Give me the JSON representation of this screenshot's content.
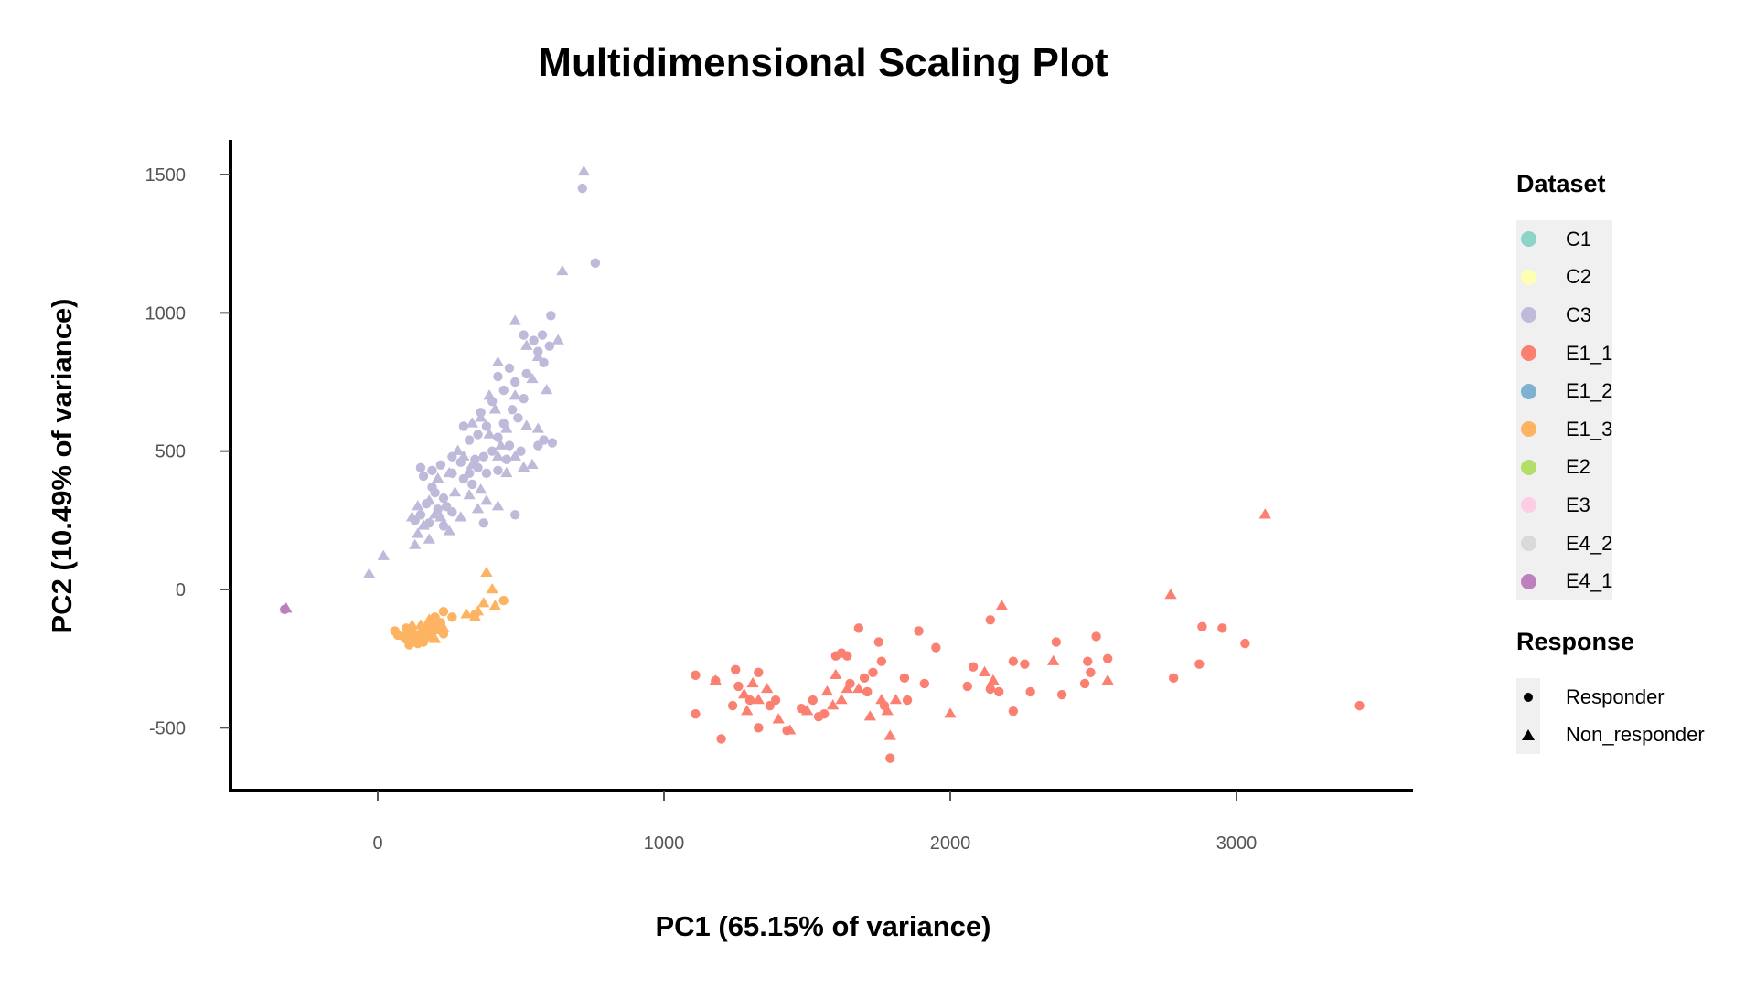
{
  "chart_data": {
    "type": "scatter",
    "title": "Multidimensional Scaling Plot",
    "xlabel": "PC1 (65.15% of variance)",
    "ylabel": "PC2 (10.49% of variance)",
    "xlim": [
      -500,
      3600
    ],
    "ylim": [
      -720,
      1620
    ],
    "xticks": [
      0,
      1000,
      2000,
      3000
    ],
    "yticks": [
      -500,
      0,
      500,
      1000,
      1500
    ],
    "grid": false,
    "legend_position": "right",
    "legends": [
      {
        "title": "Dataset",
        "items": [
          {
            "label": "C1",
            "color": "#8DD3C7"
          },
          {
            "label": "C2",
            "color": "#FFFFB3"
          },
          {
            "label": "C3",
            "color": "#BEBADA"
          },
          {
            "label": "E1_1",
            "color": "#FB8072"
          },
          {
            "label": "E1_2",
            "color": "#80B1D3"
          },
          {
            "label": "E1_3",
            "color": "#FDB462"
          },
          {
            "label": "E2",
            "color": "#B3DE69"
          },
          {
            "label": "E3",
            "color": "#FCCDE5"
          },
          {
            "label": "E4_2",
            "color": "#D9D9D9"
          },
          {
            "label": "E4_1",
            "color": "#BC80BD"
          }
        ]
      },
      {
        "title": "Response",
        "items": [
          {
            "label": "Responder",
            "shape": "circle"
          },
          {
            "label": "Non_responder",
            "shape": "triangle"
          }
        ]
      }
    ],
    "series": [
      {
        "dataset": "C3",
        "response": "Responder",
        "color": "#BEBADA",
        "points": [
          [
            715,
            1450
          ],
          [
            760,
            1180
          ],
          [
            605,
            990
          ],
          [
            575,
            920
          ],
          [
            545,
            900
          ],
          [
            510,
            920
          ],
          [
            560,
            860
          ],
          [
            600,
            880
          ],
          [
            460,
            800
          ],
          [
            420,
            770
          ],
          [
            480,
            750
          ],
          [
            520,
            780
          ],
          [
            580,
            820
          ],
          [
            440,
            720
          ],
          [
            400,
            680
          ],
          [
            360,
            640
          ],
          [
            470,
            650
          ],
          [
            510,
            690
          ],
          [
            490,
            620
          ],
          [
            440,
            600
          ],
          [
            380,
            590
          ],
          [
            300,
            590
          ],
          [
            320,
            540
          ],
          [
            350,
            560
          ],
          [
            420,
            550
          ],
          [
            460,
            520
          ],
          [
            500,
            500
          ],
          [
            560,
            520
          ],
          [
            580,
            540
          ],
          [
            610,
            530
          ],
          [
            400,
            500
          ],
          [
            370,
            480
          ],
          [
            340,
            470
          ],
          [
            290,
            460
          ],
          [
            260,
            480
          ],
          [
            220,
            450
          ],
          [
            190,
            430
          ],
          [
            150,
            440
          ],
          [
            160,
            410
          ],
          [
            260,
            420
          ],
          [
            300,
            400
          ],
          [
            330,
            380
          ],
          [
            380,
            420
          ],
          [
            420,
            430
          ],
          [
            450,
            470
          ],
          [
            200,
            350
          ],
          [
            230,
            330
          ],
          [
            170,
            310
          ],
          [
            210,
            290
          ],
          [
            260,
            280
          ],
          [
            150,
            270
          ],
          [
            130,
            250
          ],
          [
            180,
            240
          ],
          [
            230,
            230
          ],
          [
            370,
            240
          ],
          [
            480,
            270
          ],
          [
            240,
            300
          ],
          [
            190,
            370
          ],
          [
            320,
            420
          ],
          [
            350,
            440
          ]
        ]
      },
      {
        "dataset": "C3",
        "response": "Non_responder",
        "color": "#BEBADA",
        "points": [
          [
            720,
            1510
          ],
          [
            645,
            1150
          ],
          [
            480,
            970
          ],
          [
            630,
            900
          ],
          [
            520,
            880
          ],
          [
            560,
            840
          ],
          [
            420,
            820
          ],
          [
            540,
            760
          ],
          [
            480,
            700
          ],
          [
            390,
            700
          ],
          [
            590,
            720
          ],
          [
            410,
            650
          ],
          [
            360,
            620
          ],
          [
            450,
            580
          ],
          [
            390,
            560
          ],
          [
            330,
            600
          ],
          [
            520,
            590
          ],
          [
            430,
            520
          ],
          [
            480,
            480
          ],
          [
            540,
            450
          ],
          [
            330,
            450
          ],
          [
            280,
            500
          ],
          [
            420,
            480
          ],
          [
            250,
            420
          ],
          [
            210,
            400
          ],
          [
            320,
            340
          ],
          [
            360,
            360
          ],
          [
            380,
            320
          ],
          [
            270,
            350
          ],
          [
            180,
            320
          ],
          [
            140,
            300
          ],
          [
            200,
            270
          ],
          [
            120,
            260
          ],
          [
            160,
            230
          ],
          [
            140,
            200
          ],
          [
            130,
            160
          ],
          [
            180,
            180
          ],
          [
            250,
            210
          ],
          [
            220,
            260
          ],
          [
            290,
            260
          ],
          [
            350,
            290
          ],
          [
            420,
            300
          ],
          [
            20,
            120
          ],
          [
            -30,
            55
          ],
          [
            300,
            480
          ],
          [
            450,
            420
          ],
          [
            510,
            440
          ],
          [
            560,
            580
          ]
        ]
      },
      {
        "dataset": "E1_3",
        "response": "Responder",
        "color": "#FDB462",
        "points": [
          [
            60,
            -150
          ],
          [
            70,
            -165
          ],
          [
            90,
            -170
          ],
          [
            100,
            -180
          ],
          [
            110,
            -160
          ],
          [
            120,
            -150
          ],
          [
            130,
            -175
          ],
          [
            140,
            -185
          ],
          [
            150,
            -160
          ],
          [
            160,
            -150
          ],
          [
            170,
            -140
          ],
          [
            180,
            -170
          ],
          [
            190,
            -155
          ],
          [
            200,
            -130
          ],
          [
            210,
            -145
          ],
          [
            220,
            -120
          ],
          [
            230,
            -160
          ],
          [
            120,
            -190
          ],
          [
            140,
            -195
          ],
          [
            110,
            -200
          ],
          [
            160,
            -190
          ],
          [
            180,
            -125
          ],
          [
            200,
            -100
          ],
          [
            230,
            -80
          ],
          [
            260,
            -100
          ],
          [
            340,
            -90
          ],
          [
            440,
            -40
          ],
          [
            100,
            -140
          ]
        ]
      },
      {
        "dataset": "E1_3",
        "response": "Non_responder",
        "color": "#FDB462",
        "points": [
          [
            380,
            60
          ],
          [
            400,
            0
          ],
          [
            370,
            -50
          ],
          [
            340,
            -100
          ],
          [
            350,
            -80
          ],
          [
            410,
            -60
          ],
          [
            310,
            -90
          ],
          [
            180,
            -110
          ],
          [
            150,
            -130
          ],
          [
            230,
            -140
          ],
          [
            120,
            -130
          ],
          [
            200,
            -180
          ]
        ]
      },
      {
        "dataset": "E4_1",
        "response": "Non_responder",
        "color": "#BC80BD",
        "points": [
          [
            -320,
            -70
          ]
        ]
      },
      {
        "dataset": "E4_1",
        "response": "Responder",
        "color": "#BC80BD",
        "points": [
          [
            -325,
            -72
          ]
        ]
      },
      {
        "dataset": "E1_1",
        "response": "Responder",
        "color": "#FB8072",
        "points": [
          [
            3430,
            -420
          ],
          [
            3030,
            -195
          ],
          [
            2950,
            -140
          ],
          [
            2880,
            -135
          ],
          [
            2870,
            -270
          ],
          [
            2780,
            -320
          ],
          [
            2550,
            -250
          ],
          [
            2510,
            -170
          ],
          [
            2490,
            -300
          ],
          [
            2480,
            -260
          ],
          [
            2470,
            -340
          ],
          [
            2370,
            -190
          ],
          [
            2390,
            -380
          ],
          [
            2280,
            -370
          ],
          [
            2260,
            -270
          ],
          [
            2220,
            -260
          ],
          [
            2220,
            -440
          ],
          [
            2140,
            -110
          ],
          [
            2140,
            -360
          ],
          [
            2170,
            -370
          ],
          [
            2080,
            -280
          ],
          [
            2060,
            -350
          ],
          [
            1950,
            -210
          ],
          [
            1910,
            -340
          ],
          [
            1890,
            -150
          ],
          [
            1840,
            -320
          ],
          [
            1850,
            -400
          ],
          [
            1790,
            -610
          ],
          [
            1750,
            -190
          ],
          [
            1760,
            -260
          ],
          [
            1770,
            -420
          ],
          [
            1730,
            -300
          ],
          [
            1700,
            -320
          ],
          [
            1680,
            -140
          ],
          [
            1650,
            -340
          ],
          [
            1620,
            -230
          ],
          [
            1640,
            -240
          ],
          [
            1600,
            -240
          ],
          [
            1560,
            -450
          ],
          [
            1540,
            -460
          ],
          [
            1520,
            -400
          ],
          [
            1480,
            -430
          ],
          [
            1430,
            -510
          ],
          [
            1390,
            -400
          ],
          [
            1370,
            -420
          ],
          [
            1330,
            -500
          ],
          [
            1330,
            -300
          ],
          [
            1300,
            -400
          ],
          [
            1260,
            -350
          ],
          [
            1250,
            -290
          ],
          [
            1240,
            -420
          ],
          [
            1200,
            -540
          ],
          [
            1180,
            -330
          ],
          [
            1110,
            -310
          ],
          [
            1110,
            -450
          ],
          [
            1710,
            -370
          ]
        ]
      },
      {
        "dataset": "E1_1",
        "response": "Non_responder",
        "color": "#FB8072",
        "points": [
          [
            3100,
            270
          ],
          [
            2770,
            -20
          ],
          [
            2180,
            -60
          ],
          [
            2550,
            -330
          ],
          [
            2360,
            -260
          ],
          [
            2120,
            -300
          ],
          [
            2150,
            -330
          ],
          [
            2000,
            -450
          ],
          [
            1810,
            -400
          ],
          [
            1780,
            -440
          ],
          [
            1790,
            -530
          ],
          [
            1760,
            -400
          ],
          [
            1720,
            -460
          ],
          [
            1680,
            -360
          ],
          [
            1640,
            -360
          ],
          [
            1620,
            -400
          ],
          [
            1600,
            -310
          ],
          [
            1590,
            -420
          ],
          [
            1570,
            -370
          ],
          [
            1500,
            -440
          ],
          [
            1440,
            -510
          ],
          [
            1400,
            -470
          ],
          [
            1360,
            -360
          ],
          [
            1330,
            -400
          ],
          [
            1310,
            -340
          ],
          [
            1280,
            -380
          ],
          [
            1290,
            -440
          ],
          [
            1180,
            -330
          ]
        ]
      }
    ]
  }
}
